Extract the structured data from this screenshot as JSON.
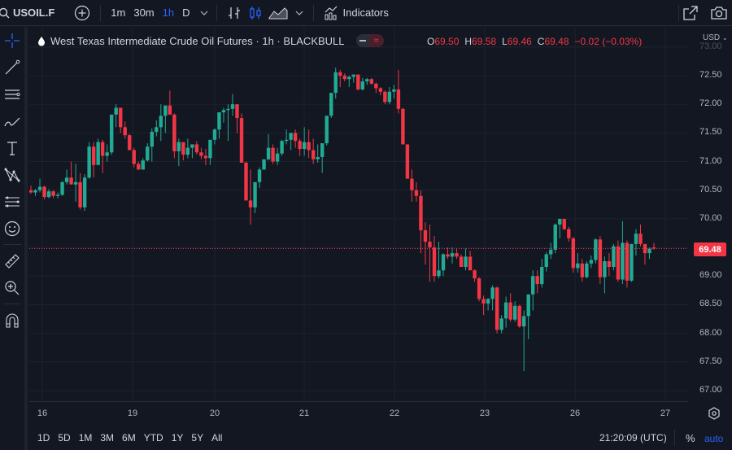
{
  "toolbar": {
    "symbol": "USOIL.F",
    "intervals": [
      "1m",
      "30m",
      "1h",
      "D"
    ],
    "active_interval": "1h",
    "indicators_label": "Indicators"
  },
  "legend": {
    "title": "West Texas Intermediate Crude Oil Futures · 1h · BLACKBULL",
    "open_key": "O",
    "open": "69.50",
    "high_key": "H",
    "high": "69.58",
    "low_key": "L",
    "low": "69.46",
    "close_key": "C",
    "close": "69.48",
    "change": "−0.02 (−0.03%)"
  },
  "price_scale": {
    "currency": "USD",
    "last_price": "69.48",
    "ticks": [
      "73.00",
      "72.50",
      "72.00",
      "71.50",
      "71.00",
      "70.50",
      "70.00",
      "69.00",
      "68.50",
      "68.00",
      "67.50",
      "67.00"
    ]
  },
  "time_scale": {
    "labels": [
      "16",
      "19",
      "20",
      "21",
      "22",
      "23",
      "26",
      "27"
    ]
  },
  "bottom_bar": {
    "ranges": [
      "1D",
      "5D",
      "1M",
      "3M",
      "6M",
      "YTD",
      "1Y",
      "5Y",
      "All"
    ],
    "clock": "21:20:09 (UTC)",
    "percent_label": "%",
    "auto_label": "auto"
  },
  "colors": {
    "up": "#22ab94",
    "down": "#f23645",
    "background": "#131722",
    "grid": "#1e222d",
    "accent": "#2962ff"
  },
  "chart_data": {
    "type": "candlestick",
    "title": "West Texas Intermediate Crude Oil Futures · 1h · BLACKBULL",
    "xlabel": "",
    "ylabel": "USD",
    "ylim": [
      66.8,
      73.0
    ],
    "x_tick_labels": [
      "16",
      "19",
      "20",
      "21",
      "22",
      "23",
      "26",
      "27"
    ],
    "y_tick_labels": [
      "67.00",
      "67.50",
      "68.00",
      "68.50",
      "69.00",
      "69.50",
      "70.00",
      "70.50",
      "71.00",
      "71.50",
      "72.00",
      "72.50",
      "73.00"
    ],
    "last_price": 69.48,
    "grid": true,
    "candles": [
      [
        70.5,
        70.58,
        70.44,
        70.46
      ],
      [
        70.46,
        70.52,
        70.4,
        70.5
      ],
      [
        70.5,
        70.7,
        70.46,
        70.56
      ],
      [
        70.56,
        70.58,
        70.34,
        70.38
      ],
      [
        70.38,
        70.52,
        70.36,
        70.48
      ],
      [
        70.48,
        70.5,
        70.36,
        70.4
      ],
      [
        70.4,
        70.46,
        70.36,
        70.42
      ],
      [
        70.42,
        70.66,
        70.4,
        70.64
      ],
      [
        70.64,
        70.86,
        70.6,
        70.72
      ],
      [
        70.72,
        71.0,
        70.6,
        70.6
      ],
      [
        70.6,
        70.96,
        70.3,
        70.64
      ],
      [
        70.64,
        70.8,
        70.16,
        70.2
      ],
      [
        70.2,
        70.78,
        70.14,
        70.72
      ],
      [
        70.72,
        71.34,
        70.7,
        71.26
      ],
      [
        71.26,
        71.34,
        70.72,
        70.94
      ],
      [
        70.94,
        71.4,
        70.98,
        71.34
      ],
      [
        71.34,
        71.38,
        70.8,
        71.1
      ],
      [
        71.1,
        71.3,
        71.0,
        71.16
      ],
      [
        71.16,
        71.58,
        71.12,
        71.82
      ],
      [
        71.82,
        72.0,
        71.6,
        71.94
      ],
      [
        71.94,
        71.92,
        71.5,
        71.6
      ],
      [
        71.6,
        71.7,
        71.4,
        71.46
      ],
      [
        71.46,
        71.48,
        71.2,
        71.2
      ],
      [
        71.2,
        71.24,
        70.9,
        70.96
      ],
      [
        70.96,
        71.0,
        70.86,
        70.86
      ],
      [
        70.86,
        71.06,
        70.86,
        71.02
      ],
      [
        71.02,
        71.32,
        71.0,
        71.26
      ],
      [
        71.26,
        71.58,
        71.0,
        71.52
      ],
      [
        71.52,
        71.72,
        71.44,
        71.6
      ],
      [
        71.6,
        72.0,
        71.36,
        71.8
      ],
      [
        71.8,
        71.82,
        71.5,
        71.98
      ],
      [
        71.98,
        72.24,
        71.94,
        71.82
      ],
      [
        71.82,
        71.84,
        71.06,
        71.18
      ],
      [
        71.18,
        71.4,
        70.92,
        71.34
      ],
      [
        71.34,
        71.34,
        71.02,
        71.12
      ],
      [
        71.12,
        71.4,
        71.06,
        71.24
      ],
      [
        71.24,
        71.3,
        71.06,
        71.3
      ],
      [
        71.3,
        71.36,
        71.12,
        71.16
      ],
      [
        71.16,
        71.24,
        71.04,
        71.1
      ],
      [
        71.1,
        71.22,
        70.94,
        71.06
      ],
      [
        71.06,
        71.34,
        70.94,
        71.38
      ],
      [
        71.38,
        71.58,
        71.3,
        71.56
      ],
      [
        71.56,
        71.68,
        71.4,
        71.86
      ],
      [
        71.86,
        71.94,
        71.68,
        71.9
      ],
      [
        71.9,
        72.0,
        71.36,
        71.92
      ],
      [
        71.92,
        72.18,
        71.8,
        72.0
      ],
      [
        72.0,
        72.0,
        71.5,
        71.76
      ],
      [
        71.76,
        71.84,
        71.1,
        70.98
      ],
      [
        70.98,
        71.0,
        70.6,
        70.32
      ],
      [
        70.32,
        70.86,
        69.9,
        70.2
      ],
      [
        70.2,
        70.58,
        70.1,
        70.64
      ],
      [
        70.64,
        70.9,
        70.54,
        70.86
      ],
      [
        70.86,
        71.02,
        70.86,
        71.04
      ],
      [
        71.04,
        71.48,
        71.02,
        71.24
      ],
      [
        71.24,
        71.3,
        70.96,
        71.0
      ],
      [
        71.0,
        71.24,
        70.94,
        71.14
      ],
      [
        71.14,
        71.38,
        71.1,
        71.36
      ],
      [
        71.36,
        71.56,
        71.3,
        71.38
      ],
      [
        71.38,
        71.5,
        71.2,
        71.5
      ],
      [
        71.5,
        71.56,
        71.24,
        71.36
      ],
      [
        71.36,
        71.4,
        71.1,
        71.22
      ],
      [
        71.22,
        71.6,
        71.1,
        71.34
      ],
      [
        71.34,
        71.56,
        71.06,
        71.2
      ],
      [
        71.2,
        71.4,
        70.96,
        71.04
      ],
      [
        71.04,
        71.3,
        70.98,
        71.08
      ],
      [
        71.08,
        71.2,
        70.8,
        71.32
      ],
      [
        71.32,
        71.7,
        71.28,
        71.8
      ],
      [
        71.8,
        72.1,
        71.76,
        72.2
      ],
      [
        72.2,
        72.64,
        72.1,
        72.56
      ],
      [
        72.56,
        72.6,
        72.3,
        72.5
      ],
      [
        72.5,
        72.54,
        72.4,
        72.44
      ],
      [
        72.44,
        72.5,
        72.3,
        72.48
      ],
      [
        72.48,
        72.52,
        72.38,
        72.52
      ],
      [
        72.52,
        72.52,
        72.24,
        72.26
      ],
      [
        72.26,
        72.46,
        72.24,
        72.4
      ],
      [
        72.4,
        72.46,
        72.34,
        72.44
      ],
      [
        72.44,
        72.46,
        72.34,
        72.36
      ],
      [
        72.36,
        72.38,
        72.2,
        72.28
      ],
      [
        72.28,
        72.3,
        72.16,
        72.22
      ],
      [
        72.22,
        72.24,
        72.0,
        72.04
      ],
      [
        72.04,
        72.3,
        72.0,
        72.22
      ],
      [
        72.22,
        72.34,
        72.1,
        72.26
      ],
      [
        72.26,
        72.6,
        71.84,
        71.92
      ],
      [
        71.92,
        71.94,
        71.3,
        71.3
      ],
      [
        71.3,
        71.3,
        70.8,
        70.7
      ],
      [
        70.7,
        70.86,
        70.3,
        70.5
      ],
      [
        70.5,
        70.64,
        70.3,
        70.4
      ],
      [
        70.4,
        70.5,
        69.4,
        69.8
      ],
      [
        69.8,
        69.94,
        69.2,
        69.6
      ],
      [
        69.6,
        69.9,
        68.9,
        69.5
      ],
      [
        69.5,
        69.7,
        68.9,
        69.0
      ],
      [
        69.0,
        69.6,
        68.96,
        69.1
      ],
      [
        69.1,
        69.4,
        69.0,
        69.38
      ],
      [
        69.38,
        69.5,
        69.3,
        69.34
      ],
      [
        69.34,
        69.5,
        69.22,
        69.4
      ],
      [
        69.4,
        69.48,
        69.3,
        69.34
      ],
      [
        69.34,
        69.38,
        69.16,
        69.16
      ],
      [
        69.16,
        69.48,
        69.1,
        69.34
      ],
      [
        69.34,
        69.44,
        69.1,
        69.1
      ],
      [
        69.1,
        69.12,
        68.9,
        68.96
      ],
      [
        68.96,
        68.98,
        68.56,
        68.6
      ],
      [
        68.6,
        68.66,
        68.32,
        68.52
      ],
      [
        68.52,
        68.62,
        68.4,
        68.6
      ],
      [
        68.6,
        68.84,
        68.4,
        68.8
      ],
      [
        68.8,
        68.82,
        68.0,
        68.06
      ],
      [
        68.06,
        68.32,
        68.0,
        68.26
      ],
      [
        68.26,
        68.64,
        68.1,
        68.54
      ],
      [
        68.54,
        68.7,
        68.2,
        68.24
      ],
      [
        68.24,
        68.56,
        68.2,
        68.48
      ],
      [
        68.48,
        68.5,
        68.1,
        68.12
      ],
      [
        68.12,
        68.4,
        67.34,
        68.3
      ],
      [
        68.3,
        68.54,
        67.9,
        68.68
      ],
      [
        68.68,
        69.1,
        68.4,
        69.0
      ],
      [
        69.0,
        69.1,
        68.7,
        68.86
      ],
      [
        68.86,
        69.3,
        68.8,
        69.16
      ],
      [
        69.16,
        69.42,
        69.08,
        69.38
      ],
      [
        69.38,
        69.58,
        69.3,
        69.46
      ],
      [
        69.46,
        69.92,
        69.4,
        69.9
      ],
      [
        69.9,
        70.0,
        69.66,
        70.0
      ],
      [
        70.0,
        70.0,
        69.8,
        69.82
      ],
      [
        69.82,
        69.86,
        69.6,
        69.66
      ],
      [
        69.66,
        69.68,
        69.06,
        69.14
      ],
      [
        69.14,
        69.4,
        69.06,
        69.22
      ],
      [
        69.22,
        69.3,
        68.9,
        68.98
      ],
      [
        68.98,
        69.26,
        68.96,
        69.22
      ],
      [
        69.22,
        69.36,
        69.14,
        69.28
      ],
      [
        69.28,
        69.66,
        69.22,
        69.64
      ],
      [
        69.64,
        69.7,
        68.86,
        68.98
      ],
      [
        68.98,
        69.34,
        68.7,
        69.26
      ],
      [
        69.26,
        69.4,
        69.0,
        69.16
      ],
      [
        69.16,
        69.56,
        69.1,
        69.52
      ],
      [
        69.52,
        69.62,
        68.9,
        68.94
      ],
      [
        68.94,
        69.96,
        68.86,
        69.58
      ],
      [
        69.58,
        69.62,
        68.8,
        68.92
      ],
      [
        68.92,
        69.56,
        68.9,
        69.56
      ],
      [
        69.56,
        69.82,
        69.36,
        69.74
      ],
      [
        69.74,
        69.9,
        69.52,
        69.56
      ],
      [
        69.56,
        69.56,
        69.2,
        69.4
      ],
      [
        69.4,
        69.5,
        69.3,
        69.48
      ],
      [
        69.5,
        69.58,
        69.46,
        69.48
      ]
    ]
  }
}
